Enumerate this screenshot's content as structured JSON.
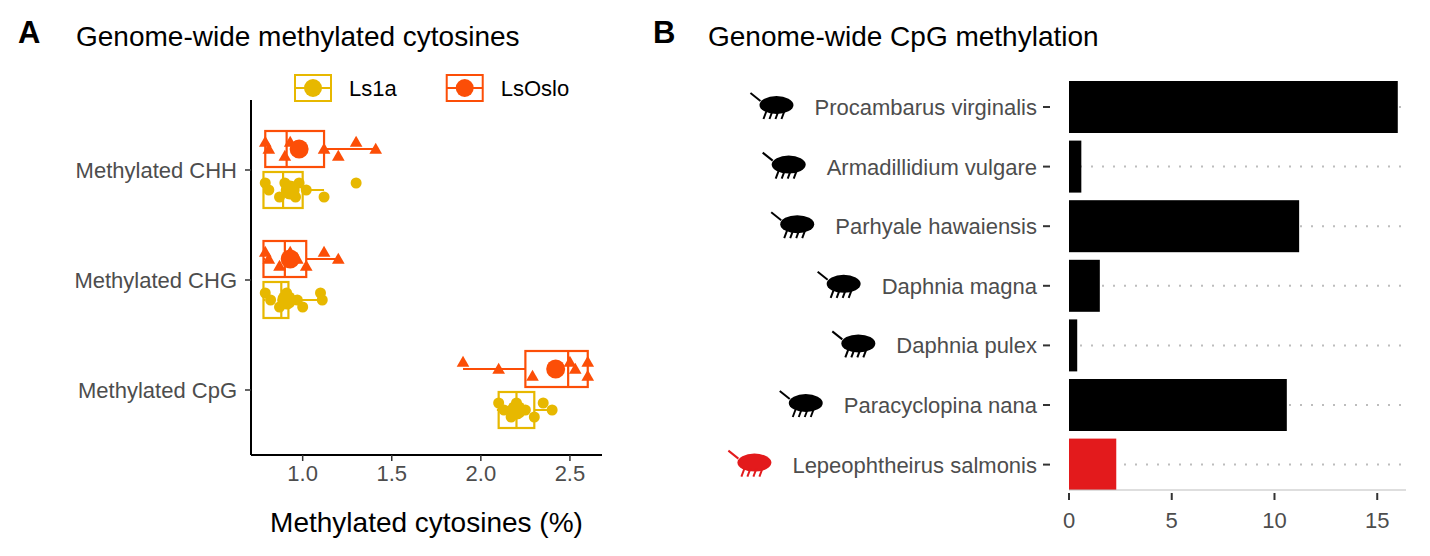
{
  "chart_data": [
    {
      "type": "box",
      "annotation": "A",
      "title": "Genome-wide methylated cytosines",
      "x_label": "Methylated cytosines (%)",
      "orientation": "horizontal",
      "legend": "top",
      "categories": [
        "Methylated CHH",
        "Methylated CHG",
        "Methylated CpG"
      ],
      "xlim": [
        0.71,
        2.68
      ],
      "xticks": [
        {
          "value": 1,
          "label": "1.0"
        },
        1.5,
        {
          "value": 2,
          "label": "2.0"
        },
        2.5
      ],
      "series": [
        {
          "name": "Ls1a",
          "color": "#E7B800",
          "marker": "circle",
          "boxes": [
            {
              "min": 0.79,
              "q1": 0.78,
              "median": 0.89,
              "q3": 1.0,
              "max": 1.12,
              "mean": 0.93,
              "points": [
                0.79,
                0.81,
                0.87,
                0.9,
                0.93,
                0.96,
                0.98,
                1.02,
                1.12,
                1.3
              ]
            },
            {
              "min": 0.79,
              "q1": 0.78,
              "median": 0.88,
              "q3": 0.92,
              "max": 1.11,
              "mean": 0.91,
              "points": [
                0.79,
                0.82,
                0.87,
                0.91,
                0.97,
                1.0,
                1.1,
                1.11
              ]
            },
            {
              "min": 2.09,
              "q1": 2.1,
              "median": 2.2,
              "q3": 2.3,
              "max": 2.4,
              "mean": 2.2,
              "points": [
                2.1,
                2.13,
                2.17,
                2.2,
                2.25,
                2.3,
                2.35,
                2.4
              ]
            }
          ]
        },
        {
          "name": "LsOslo",
          "color": "#FC4E07",
          "marker": "triangle",
          "boxes": [
            {
              "min": 0.79,
              "q1": 0.79,
              "median": 0.91,
              "q3": 1.12,
              "max": 1.41,
              "mean": 0.98,
              "points": [
                0.79,
                0.81,
                0.9,
                0.93,
                1.12,
                1.2,
                1.3,
                1.41
              ]
            },
            {
              "min": 0.79,
              "q1": 0.78,
              "median": 0.9,
              "q3": 1.02,
              "max": 1.2,
              "mean": 0.93,
              "points": [
                0.79,
                0.81,
                0.87,
                0.93,
                0.97,
                1.02,
                1.12,
                1.2
              ]
            },
            {
              "min": 1.9,
              "q1": 2.25,
              "median": 2.49,
              "q3": 2.6,
              "max": 2.6,
              "mean": 2.42,
              "points": [
                1.9,
                2.1,
                2.29,
                2.5,
                2.53,
                2.6,
                2.6
              ]
            }
          ]
        }
      ]
    },
    {
      "type": "bar",
      "annotation": "B",
      "title": "Genome-wide CpG methylation",
      "orientation": "horizontal",
      "grid": true,
      "categories": [
        "Procambarus virginalis",
        "Armadillidium vulgare",
        "Parhyale hawaiensis",
        "Daphnia magna",
        "Daphnia pulex",
        "Paracyclopina nana",
        "Lepeophtheirus salmonis"
      ],
      "values": [
        16.0,
        0.6,
        11.2,
        1.5,
        0.4,
        10.6,
        2.3
      ],
      "colors": [
        "#000000",
        "#000000",
        "#000000",
        "#000000",
        "#000000",
        "#000000",
        "#E31A1C"
      ],
      "xlim": [
        0,
        16.4
      ],
      "xticks": [
        0,
        5,
        10,
        15
      ]
    }
  ]
}
